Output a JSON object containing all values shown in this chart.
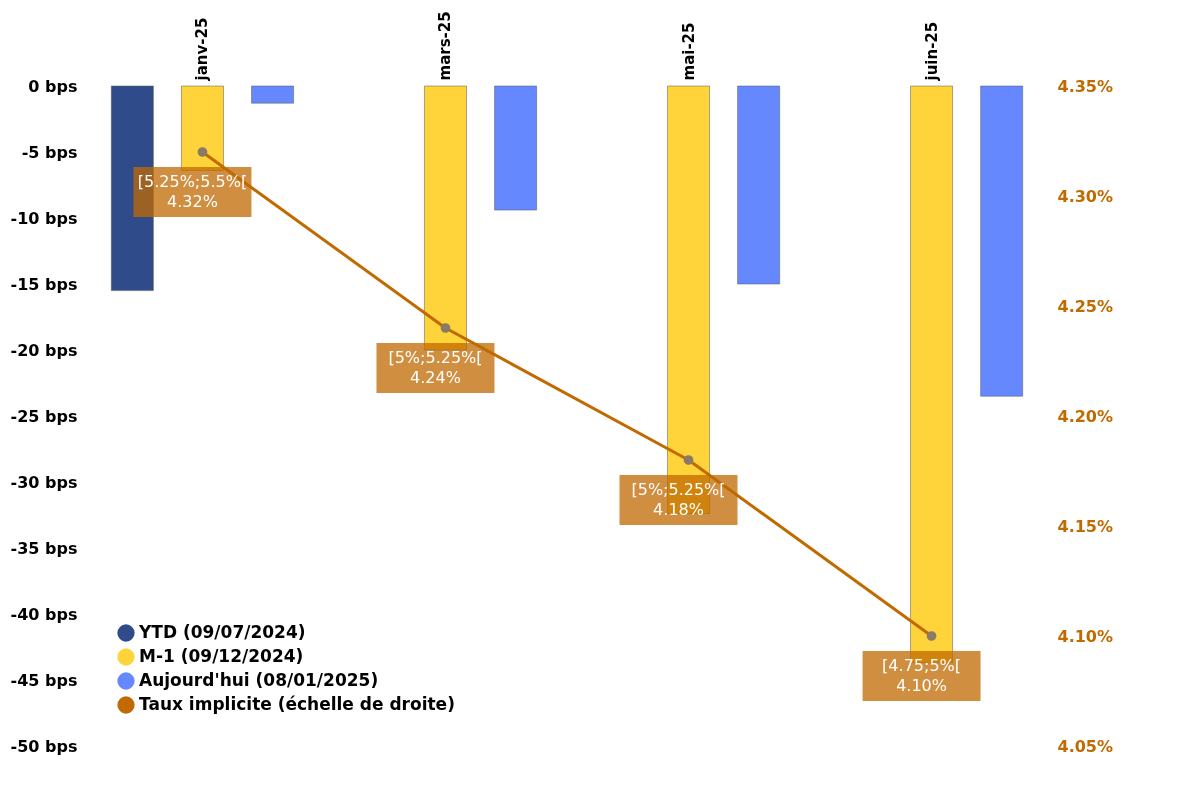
{
  "chart_data": {
    "type": "bar",
    "categories": [
      "janv-25",
      "mars-25",
      "mai-25",
      "juin-25"
    ],
    "series": [
      {
        "name": "YTD (09/07/2024)",
        "color": "#2f4b8a",
        "values": [
          -15.5,
          null,
          null,
          null
        ]
      },
      {
        "name": "M-1 (09/12/2024)",
        "color": "#ffd43b",
        "values": [
          -6.4,
          -20,
          -32.4,
          -43.7
        ]
      },
      {
        "name": "Aujourd'hui (08/01/2025)",
        "color": "#6688ff",
        "values": [
          -1.3,
          -9.4,
          -15,
          -23.5
        ]
      },
      {
        "name": "Taux implicite (échelle de droite)",
        "type": "line",
        "axis": "y2",
        "color": "#c06a00",
        "marker": "circle",
        "values": [
          4.32,
          4.24,
          4.18,
          4.1
        ],
        "value_labels": [
          "[5.25%;5.5%[\n4.32%",
          "[5%;5.25%[\n4.24%",
          "[5%;5.25%[\n4.18%",
          "[4.75;5%[\n4.10%"
        ]
      }
    ],
    "ylim": [
      -50,
      0
    ],
    "yticks": [
      {
        "value": 0,
        "label": "0 bps"
      },
      {
        "value": -5,
        "label": "-5 bps"
      },
      {
        "value": -10,
        "label": "-10 bps"
      },
      {
        "value": -15,
        "label": "-15 bps"
      },
      {
        "value": -20,
        "label": "-20 bps"
      },
      {
        "value": -25,
        "label": "-25 bps"
      },
      {
        "value": -30,
        "label": "-30 bps"
      },
      {
        "value": -35,
        "label": "-35 bps"
      },
      {
        "value": -40,
        "label": "-40 bps"
      },
      {
        "value": -45,
        "label": "-45 bps"
      },
      {
        "value": -50,
        "label": "-50 bps"
      }
    ],
    "y2lim": [
      4.05,
      4.35
    ],
    "y2ticks": [
      {
        "value": 4.35,
        "label": "4.35%"
      },
      {
        "value": 4.3,
        "label": "4.30%"
      },
      {
        "value": 4.25,
        "label": "4.25%"
      },
      {
        "value": 4.2,
        "label": "4.20%"
      },
      {
        "value": 4.15,
        "label": "4.15%"
      },
      {
        "value": 4.1,
        "label": "4.10%"
      },
      {
        "value": 4.05,
        "label": "4.05%"
      }
    ],
    "legend": "bottom left",
    "grid": false
  }
}
